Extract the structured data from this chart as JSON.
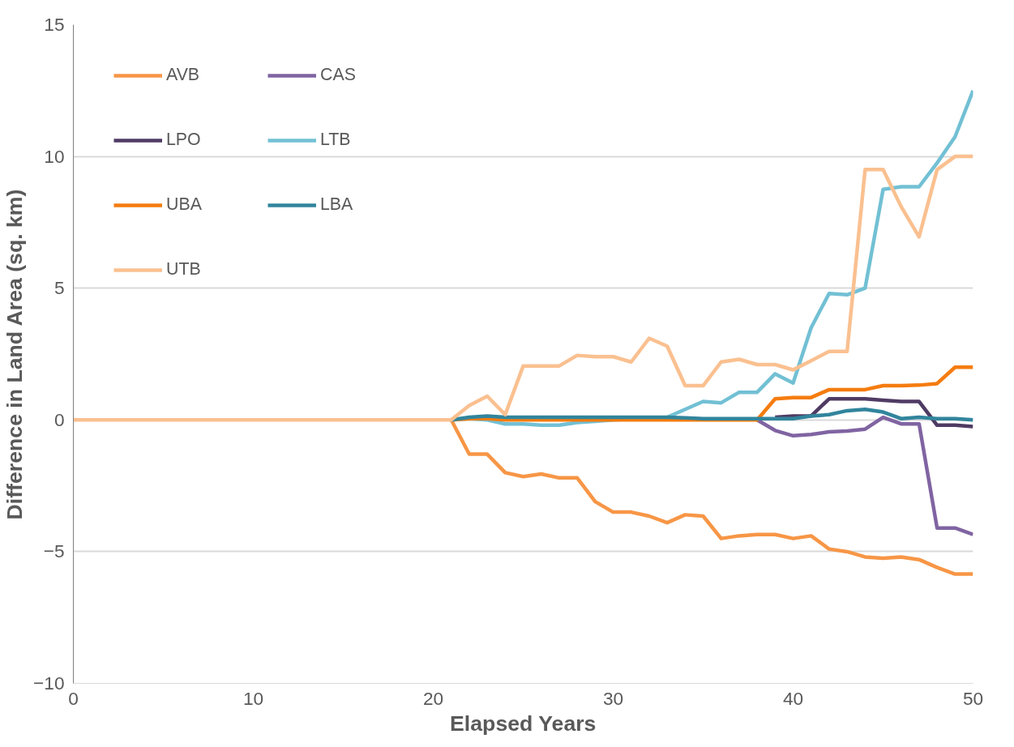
{
  "chart_data": {
    "type": "line",
    "xlabel": "Elapsed Years",
    "ylabel": "Difference in Land Area (sq. km)",
    "x": [
      0,
      1,
      2,
      3,
      4,
      5,
      6,
      7,
      8,
      9,
      10,
      11,
      12,
      13,
      14,
      15,
      16,
      17,
      18,
      19,
      20,
      21,
      22,
      23,
      24,
      25,
      26,
      27,
      28,
      29,
      30,
      31,
      32,
      33,
      34,
      35,
      36,
      37,
      38,
      39,
      40,
      41,
      42,
      43,
      44,
      45,
      46,
      47,
      48,
      49,
      50
    ],
    "xlim": [
      0,
      50
    ],
    "xticks": [
      0,
      10,
      20,
      30,
      40,
      50
    ],
    "ylim": [
      -10,
      15
    ],
    "yticks": [
      -10,
      -5,
      0,
      5,
      10,
      15
    ],
    "grid": "y",
    "legend": "top left",
    "marker": "none",
    "line_style": "solid",
    "series": [
      {
        "name": "AVB",
        "color": "#f79646",
        "values": [
          null,
          null,
          null,
          null,
          null,
          null,
          null,
          null,
          null,
          null,
          null,
          null,
          null,
          null,
          null,
          null,
          null,
          null,
          null,
          null,
          null,
          0,
          -1.3,
          -1.3,
          -2.0,
          -2.15,
          -2.05,
          -2.2,
          -2.2,
          -3.1,
          -3.5,
          -3.5,
          -3.65,
          -3.9,
          -3.6,
          -3.65,
          -4.5,
          -4.4,
          -4.35,
          -4.35,
          -4.5,
          -4.4,
          -4.9,
          -5.0,
          -5.2,
          -5.25,
          -5.2,
          -5.3,
          -5.6,
          -5.85,
          -5.85
        ]
      },
      {
        "name": "CAS",
        "color": "#8064a2",
        "values": [
          null,
          null,
          null,
          null,
          null,
          null,
          null,
          null,
          null,
          null,
          null,
          null,
          null,
          null,
          null,
          null,
          null,
          null,
          null,
          null,
          null,
          null,
          null,
          null,
          null,
          null,
          null,
          null,
          null,
          null,
          null,
          null,
          null,
          null,
          null,
          null,
          null,
          null,
          0,
          -0.4,
          -0.6,
          -0.55,
          -0.45,
          -0.42,
          -0.35,
          0.1,
          -0.15,
          -0.15,
          -4.1,
          -4.1,
          -4.35
        ]
      },
      {
        "name": "LPO",
        "color": "#4f3b63",
        "values": [
          null,
          null,
          null,
          null,
          null,
          null,
          null,
          null,
          null,
          null,
          null,
          null,
          null,
          null,
          null,
          null,
          null,
          null,
          null,
          null,
          null,
          null,
          null,
          null,
          null,
          null,
          null,
          null,
          null,
          null,
          null,
          null,
          null,
          null,
          null,
          null,
          null,
          null,
          null,
          0.1,
          0.15,
          0.15,
          0.8,
          0.8,
          0.8,
          0.75,
          0.7,
          0.7,
          -0.2,
          -0.2,
          -0.25
        ]
      },
      {
        "name": "LTB",
        "color": "#72c0d4",
        "values": [
          null,
          null,
          null,
          null,
          null,
          null,
          null,
          null,
          null,
          null,
          null,
          null,
          null,
          null,
          null,
          null,
          null,
          null,
          null,
          null,
          null,
          0,
          0.05,
          0,
          -0.15,
          -0.15,
          -0.2,
          -0.2,
          -0.1,
          -0.05,
          0,
          0.05,
          0.05,
          0.1,
          0.4,
          0.7,
          0.65,
          1.05,
          1.05,
          1.75,
          1.4,
          3.5,
          4.8,
          4.75,
          5.0,
          8.75,
          8.85,
          8.85,
          9.75,
          10.75,
          12.5
        ]
      },
      {
        "name": "UBA",
        "color": "#f57c0f",
        "values": [
          null,
          null,
          null,
          null,
          null,
          null,
          null,
          null,
          null,
          null,
          null,
          null,
          null,
          null,
          null,
          null,
          null,
          null,
          null,
          null,
          null,
          0,
          0.05,
          0.05,
          0,
          0,
          0,
          0,
          0,
          0,
          0,
          0,
          0,
          0,
          0,
          0,
          0,
          0,
          0,
          0.8,
          0.85,
          0.85,
          1.15,
          1.15,
          1.15,
          1.3,
          1.3,
          1.32,
          1.38,
          2.0,
          2.0
        ]
      },
      {
        "name": "LBA",
        "color": "#31859c",
        "values": [
          null,
          null,
          null,
          null,
          null,
          null,
          null,
          null,
          null,
          null,
          null,
          null,
          null,
          null,
          null,
          null,
          null,
          null,
          null,
          null,
          null,
          0,
          0.1,
          0.15,
          0.1,
          0.1,
          0.1,
          0.1,
          0.1,
          0.1,
          0.1,
          0.1,
          0.1,
          0.1,
          0.08,
          0.05,
          0.05,
          0.05,
          0.05,
          0.05,
          0.05,
          0.15,
          0.2,
          0.35,
          0.4,
          0.3,
          0.05,
          0.1,
          0.05,
          0.05,
          0
        ]
      },
      {
        "name": "UTB",
        "color": "#fac090",
        "values": [
          0,
          0,
          0,
          0,
          0,
          0,
          0,
          0,
          0,
          0,
          0,
          0,
          0,
          0,
          0,
          0,
          0,
          0,
          0,
          0,
          0,
          0,
          0.55,
          0.9,
          0.2,
          2.05,
          2.05,
          2.05,
          2.45,
          2.4,
          2.4,
          2.2,
          3.1,
          2.8,
          1.3,
          1.3,
          2.2,
          2.3,
          2.1,
          2.1,
          1.9,
          2.25,
          2.6,
          2.6,
          9.5,
          9.5,
          8.1,
          6.95,
          9.5,
          10.0,
          10.0
        ]
      }
    ]
  }
}
